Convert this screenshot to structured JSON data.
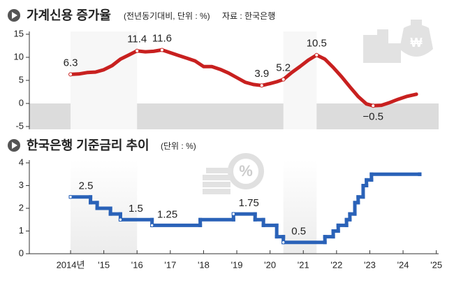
{
  "chart_data": [
    {
      "type": "line",
      "title": "가계신용 증가율",
      "subtitle": "(전년동기대비, 단위 : %)",
      "source": "자료 : 한국은행",
      "x": [
        2014.0,
        2014.25,
        2014.5,
        2014.75,
        2015.0,
        2015.25,
        2015.5,
        2015.75,
        2016.0,
        2016.25,
        2016.5,
        2016.75,
        2017.0,
        2017.25,
        2017.5,
        2017.75,
        2018.0,
        2018.25,
        2018.5,
        2018.75,
        2019.0,
        2019.25,
        2019.5,
        2019.75,
        2020.0,
        2020.2,
        2020.4,
        2020.65,
        2020.9,
        2021.15,
        2021.4,
        2021.65,
        2021.9,
        2022.15,
        2022.4,
        2022.65,
        2022.9,
        2023.1,
        2023.35,
        2023.6,
        2023.85,
        2024.1,
        2024.4
      ],
      "values": [
        6.3,
        6.4,
        6.7,
        6.8,
        7.3,
        8.2,
        9.6,
        10.5,
        11.4,
        11.2,
        11.3,
        11.6,
        11.0,
        10.4,
        9.8,
        9.2,
        8.0,
        8.0,
        7.4,
        6.6,
        5.6,
        4.6,
        4.1,
        3.9,
        4.3,
        4.7,
        5.2,
        6.7,
        8.0,
        9.4,
        10.5,
        9.6,
        7.8,
        5.8,
        3.6,
        1.5,
        -0.1,
        -0.5,
        -0.4,
        0.2,
        0.9,
        1.5,
        2.0
      ],
      "value_labels": [
        "6.3",
        null,
        null,
        null,
        null,
        null,
        null,
        null,
        "11.4",
        null,
        null,
        "11.6",
        null,
        null,
        null,
        null,
        null,
        null,
        null,
        null,
        null,
        null,
        null,
        "3.9",
        null,
        null,
        "5.2",
        null,
        null,
        null,
        "10.5",
        null,
        null,
        null,
        null,
        null,
        null,
        "−0.5",
        null,
        null,
        null,
        null,
        null
      ],
      "color": "#c8201f",
      "xlim": [
        2012.76,
        2025.07
      ],
      "ylim": [
        -5,
        15
      ],
      "yticks": [
        15,
        10,
        5,
        0,
        -5
      ]
    },
    {
      "type": "step",
      "title": "한국은행 기준금리 추이",
      "subtitle": "(단위 : %)",
      "x": [
        2014.0,
        2014.6,
        2014.8,
        2015.2,
        2015.5,
        2016.45,
        2017.9,
        2018.9,
        2019.55,
        2019.8,
        2020.2,
        2020.4,
        2021.65,
        2021.9,
        2022.05,
        2022.3,
        2022.4,
        2022.55,
        2022.65,
        2022.8,
        2022.9,
        2023.05,
        2024.5
      ],
      "values": [
        2.5,
        2.25,
        2.0,
        1.75,
        1.5,
        1.25,
        1.5,
        1.75,
        1.5,
        1.25,
        0.75,
        0.5,
        0.75,
        1.0,
        1.25,
        1.5,
        1.75,
        2.25,
        2.5,
        3.0,
        3.25,
        3.5,
        3.5
      ],
      "value_labels": [
        "2.5",
        null,
        null,
        null,
        "1.5",
        "1.25",
        null,
        "1.75",
        null,
        null,
        null,
        "0.5",
        null,
        null,
        null,
        null,
        null,
        null,
        null,
        null,
        null,
        null,
        null
      ],
      "color": "#2a62b8",
      "xlim": [
        2012.76,
        2025.07
      ],
      "xticks": [
        {
          "value": 2014,
          "label": "2014년"
        },
        {
          "value": 2015,
          "label": "'15"
        },
        {
          "value": 2016,
          "label": "'16"
        },
        {
          "value": 2017,
          "label": "'17"
        },
        {
          "value": 2018,
          "label": "'18"
        },
        {
          "value": 2019,
          "label": "'19"
        },
        {
          "value": 2020,
          "label": "'20"
        },
        {
          "value": 2021,
          "label": "'21"
        },
        {
          "value": 2022,
          "label": "'22"
        },
        {
          "value": 2023,
          "label": "'23"
        },
        {
          "value": 2024,
          "label": "'24"
        },
        {
          "value": 2025,
          "label": "'25"
        }
      ],
      "ylim": [
        0,
        4
      ],
      "yticks": [
        4,
        3,
        2,
        1,
        0
      ]
    }
  ]
}
